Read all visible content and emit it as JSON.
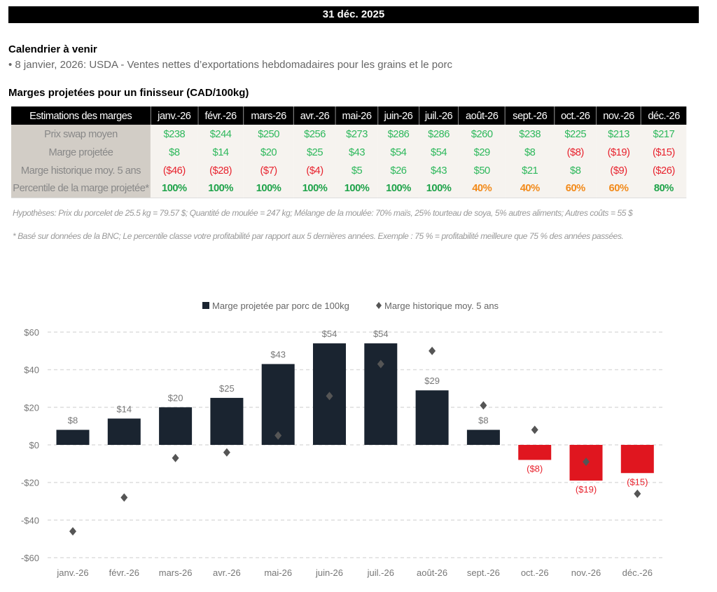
{
  "header": {
    "date": "31 déc. 2025"
  },
  "calendar": {
    "title": "Calendrier à venir",
    "items": [
      "• 8 janvier, 2026: USDA - Ventes nettes d’exportations hebdomadaires pour les grains et le porc"
    ]
  },
  "table": {
    "title": "Marges projetées pour un finisseur (CAD/100kg)",
    "header_label": "Estimations des marges",
    "months": [
      "janv.-26",
      "févr.-26",
      "mars-26",
      "avr.-26",
      "mai-26",
      "juin-26",
      "juil.-26",
      "août-26",
      "sept.-26",
      "oct.-26",
      "nov.-26",
      "déc.-26"
    ],
    "rows": [
      {
        "label": "Prix swap moyen",
        "values": [
          "$238",
          "$244",
          "$250",
          "$256",
          "$273",
          "$286",
          "$286",
          "$260",
          "$238",
          "$225",
          "$213",
          "$217"
        ]
      },
      {
        "label": "Marge projetée",
        "values": [
          "$8",
          "$14",
          "$20",
          "$25",
          "$43",
          "$54",
          "$54",
          "$29",
          "$8",
          "($8)",
          "($19)",
          "($15)"
        ]
      },
      {
        "label": "Marge historique moy. 5 ans",
        "values": [
          "($46)",
          "($28)",
          "($7)",
          "($4)",
          "$5",
          "$26",
          "$43",
          "$50",
          "$21",
          "$8",
          "($9)",
          "($26)"
        ]
      },
      {
        "label": "Percentile de la marge projetée*",
        "values": [
          "100%",
          "100%",
          "100%",
          "100%",
          "100%",
          "100%",
          "100%",
          "40%",
          "40%",
          "60%",
          "60%",
          "80%"
        ]
      }
    ]
  },
  "notes": {
    "hypotheses": "Hypothèses: Prix du porcelet de 25.5 kg = 79.57 $; Quantité de moulée = 247 kg; Mélange de la moulée: 70% maïs, 25% tourteau de soya, 5% autres aliments; Autres coûts = 55 $",
    "footnote": "* Basé sur données de la BNC; Le percentile classe votre profitabilité par rapport aux 5 dernières années. Exemple : 75 % = profitabilité meilleure que 75 % des années passées."
  },
  "colors": {
    "bar_positive": "#1a2430",
    "bar_negative": "#e0161f",
    "marker": "#555555",
    "label_negative": "#e8232e",
    "label_positive": "#777777"
  },
  "chart_data": {
    "type": "bar",
    "title": "",
    "xlabel": "",
    "ylabel": "",
    "categories": [
      "janv.-26",
      "févr.-26",
      "mars-26",
      "avr.-26",
      "mai-26",
      "juin-26",
      "juil.-26",
      "août-26",
      "sept.-26",
      "oct.-26",
      "nov.-26",
      "déc.-26"
    ],
    "series": [
      {
        "name": "Marge projetée par porc de 100kg",
        "kind": "bar",
        "values": [
          8,
          14,
          20,
          25,
          43,
          54,
          54,
          29,
          8,
          -8,
          -19,
          -15
        ],
        "labels": [
          "$8",
          "$14",
          "$20",
          "$25",
          "$43",
          "$54",
          "$54",
          "$29",
          "$8",
          "($8)",
          "($19)",
          "($15)"
        ]
      },
      {
        "name": "Marge historique moy. 5 ans",
        "kind": "marker",
        "values": [
          -46,
          -28,
          -7,
          -4,
          5,
          26,
          43,
          50,
          21,
          8,
          -9,
          -26
        ]
      }
    ],
    "ylim": [
      -60,
      60
    ],
    "yticks": [
      60,
      40,
      20,
      0,
      -20,
      -40,
      -60
    ],
    "ytick_labels": [
      "$60",
      "$40",
      "$20",
      "$0",
      "-$20",
      "-$40",
      "-$60"
    ],
    "grid": true,
    "legend_position": "top-center"
  }
}
